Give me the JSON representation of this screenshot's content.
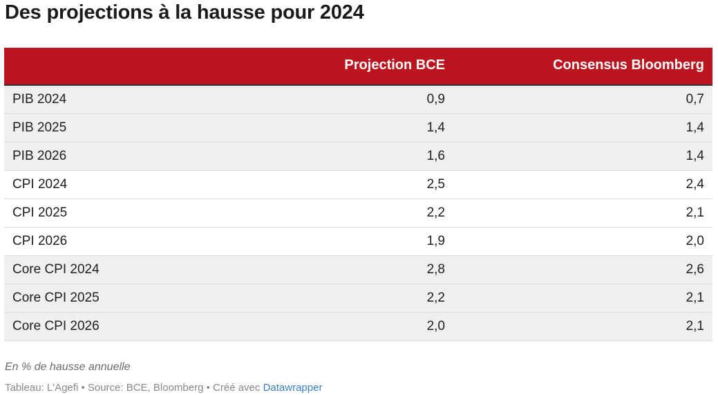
{
  "title": "Des projections à la hausse pour 2024",
  "note": "En % de hausse annuelle",
  "footer": {
    "text": "Tableau: L'Agefi • Source: BCE, Bloomberg • Créé avec",
    "link_label": "Datawrapper"
  },
  "colors": {
    "header_background": "#bb1620",
    "shaded_row": "#efefef",
    "link": "#3a7fc1"
  },
  "chart_data": {
    "type": "table",
    "title": "Des projections à la hausse pour 2024",
    "columns": [
      "",
      "Projection BCE",
      "Consensus Bloomberg"
    ],
    "rows": [
      {
        "label": "PIB 2024",
        "values": [
          "0,9",
          "0,7"
        ]
      },
      {
        "label": "PIB 2025",
        "values": [
          "1,4",
          "1,4"
        ]
      },
      {
        "label": "PIB 2026",
        "values": [
          "1,6",
          "1,4"
        ]
      },
      {
        "label": "CPI 2024",
        "values": [
          "2,5",
          "2,4"
        ]
      },
      {
        "label": "CPI 2025",
        "values": [
          "2,2",
          "2,1"
        ]
      },
      {
        "label": "CPI 2026",
        "values": [
          "1,9",
          "2,0"
        ]
      },
      {
        "label": "Core CPI 2024",
        "values": [
          "2,8",
          "2,6"
        ]
      },
      {
        "label": "Core CPI 2025",
        "values": [
          "2,2",
          "2,1"
        ]
      },
      {
        "label": "Core CPI 2026",
        "values": [
          "2,0",
          "2,1"
        ]
      }
    ],
    "row_groups_shaded": [
      true,
      true,
      true,
      false,
      false,
      false,
      true,
      true,
      true
    ]
  }
}
